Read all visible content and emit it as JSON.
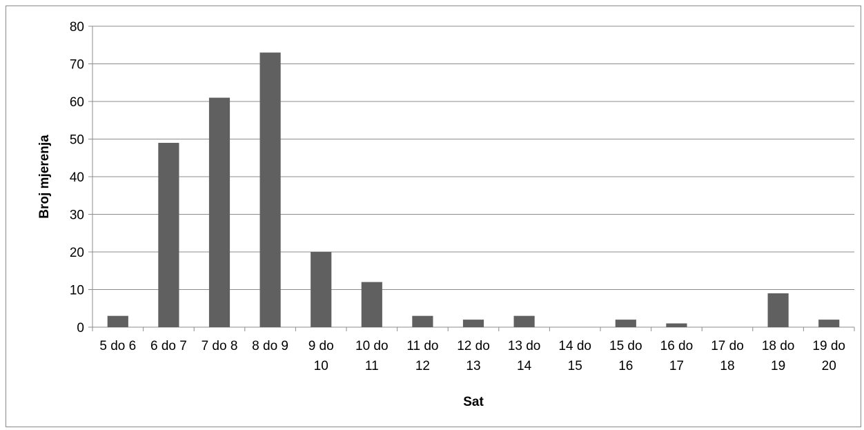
{
  "chart_data": {
    "type": "bar",
    "xlabel": "Sat",
    "ylabel": "Broj mjerenja",
    "ylim": [
      0,
      80
    ],
    "yticks": [
      0,
      10,
      20,
      30,
      40,
      50,
      60,
      70,
      80
    ],
    "grid": true,
    "legend": "none",
    "categories": [
      "5 do 6",
      "6 do 7",
      "7 do 8",
      "8 do 9",
      "9 do 10",
      "10 do 11",
      "11 do 12",
      "12 do 13",
      "13 do 14",
      "14 do 15",
      "15 do 16",
      "16 do 17",
      "17 do 18",
      "18 do 19",
      "19 do 20"
    ],
    "category_lines": [
      [
        "5 do 6"
      ],
      [
        "6 do 7"
      ],
      [
        "7 do 8"
      ],
      [
        "8 do 9"
      ],
      [
        "9 do",
        "10"
      ],
      [
        "10 do",
        "11"
      ],
      [
        "11 do",
        "12"
      ],
      [
        "12 do",
        "13"
      ],
      [
        "13 do",
        "14"
      ],
      [
        "14 do",
        "15"
      ],
      [
        "15 do",
        "16"
      ],
      [
        "16 do",
        "17"
      ],
      [
        "17 do",
        "18"
      ],
      [
        "18 do",
        "19"
      ],
      [
        "19 do",
        "20"
      ]
    ],
    "values": [
      3,
      49,
      61,
      73,
      20,
      12,
      3,
      2,
      3,
      0,
      2,
      1,
      0,
      9,
      2
    ],
    "colors": {
      "bar": "#606060",
      "grid": "#8c8c8c",
      "axis": "#8c8c8c"
    }
  }
}
